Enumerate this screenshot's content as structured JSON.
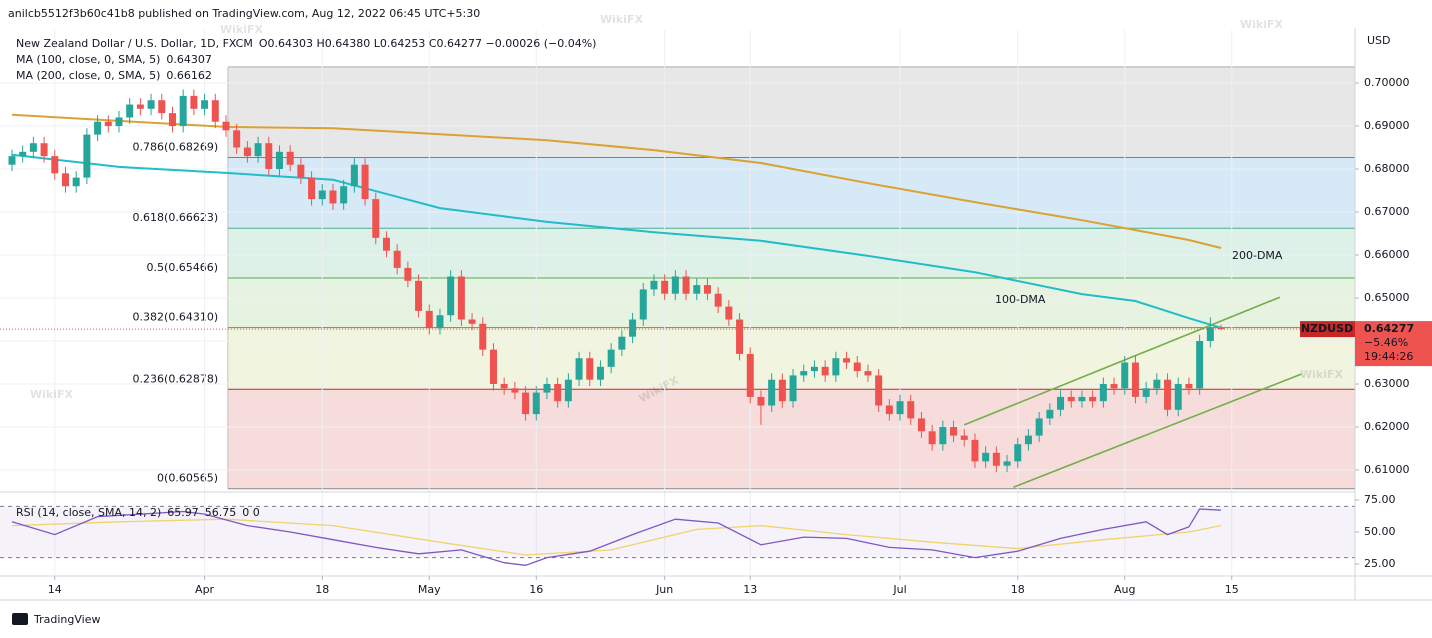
{
  "page": {
    "publisher_line": "anilcb5512f3b60c41b8 published on TradingView.com, Aug 12, 2022 06:45 UTC+5:30",
    "footer": "TradingView",
    "watermark": "WikiFX"
  },
  "chart_data": {
    "type": "candlestick",
    "title": "New Zealand Dollar / U.S. Dollar, 1D, FXCM",
    "ohlc_text": "O0.64303 H0.64380 L0.64253 C0.64277 −0.00026 (−0.04%)",
    "y_axis_label": "USD",
    "up_color": "#26a69a",
    "down_color": "#ef5350",
    "open": [
      0.681,
      0.683,
      0.684,
      0.686,
      0.683,
      0.679,
      0.676,
      0.678,
      0.688,
      0.691,
      0.69,
      0.692,
      0.695,
      0.694,
      0.696,
      0.693,
      0.69,
      0.697,
      0.694,
      0.696,
      0.691,
      0.689,
      0.685,
      0.683,
      0.686,
      0.68,
      0.684,
      0.681,
      0.678,
      0.673,
      0.675,
      0.672,
      0.676,
      0.681,
      0.673,
      0.664,
      0.661,
      0.657,
      0.654,
      0.647,
      0.643,
      0.646,
      0.655,
      0.645,
      0.644,
      0.638,
      0.63,
      0.629,
      0.628,
      0.623,
      0.628,
      0.63,
      0.626,
      0.631,
      0.636,
      0.631,
      0.634,
      0.638,
      0.641,
      0.645,
      0.652,
      0.654,
      0.651,
      0.655,
      0.651,
      0.653,
      0.651,
      0.648,
      0.645,
      0.637,
      0.627,
      0.625,
      0.631,
      0.626,
      0.632,
      0.633,
      0.634,
      0.632,
      0.636,
      0.635,
      0.633,
      0.632,
      0.625,
      0.623,
      0.626,
      0.622,
      0.619,
      0.616,
      0.62,
      0.618,
      0.617,
      0.612,
      0.614,
      0.611,
      0.612,
      0.616,
      0.618,
      0.622,
      0.624,
      0.627,
      0.626,
      0.627,
      0.626,
      0.63,
      0.629,
      0.635,
      0.627,
      0.629,
      0.631,
      0.624,
      0.63,
      0.629,
      0.64,
      0.64303
    ],
    "high": [
      0.6845,
      0.6855,
      0.6875,
      0.6875,
      0.6845,
      0.6805,
      0.6795,
      0.6895,
      0.6925,
      0.6925,
      0.6935,
      0.6965,
      0.6965,
      0.6975,
      0.6975,
      0.6945,
      0.6985,
      0.6985,
      0.6975,
      0.6975,
      0.6925,
      0.6905,
      0.6865,
      0.6875,
      0.6875,
      0.6855,
      0.6855,
      0.6825,
      0.6795,
      0.6765,
      0.6765,
      0.6775,
      0.6825,
      0.6825,
      0.6745,
      0.6655,
      0.6625,
      0.6585,
      0.6555,
      0.6485,
      0.6475,
      0.6565,
      0.6565,
      0.6465,
      0.6455,
      0.6395,
      0.6315,
      0.6305,
      0.6295,
      0.6295,
      0.6315,
      0.6315,
      0.6325,
      0.6375,
      0.6375,
      0.6355,
      0.6395,
      0.6425,
      0.6465,
      0.6535,
      0.6555,
      0.6555,
      0.6565,
      0.6565,
      0.6545,
      0.6545,
      0.6525,
      0.6495,
      0.6465,
      0.6385,
      0.6285,
      0.6325,
      0.6325,
      0.6335,
      0.6345,
      0.6355,
      0.6355,
      0.6375,
      0.6375,
      0.6365,
      0.6345,
      0.6335,
      0.6265,
      0.6275,
      0.6275,
      0.6235,
      0.6205,
      0.6215,
      0.6215,
      0.6195,
      0.6185,
      0.6155,
      0.6155,
      0.6135,
      0.6175,
      0.6195,
      0.6235,
      0.6255,
      0.6285,
      0.6285,
      0.6285,
      0.6285,
      0.6315,
      0.6315,
      0.6365,
      0.6365,
      0.6305,
      0.6325,
      0.6325,
      0.6315,
      0.6315,
      0.6415,
      0.6455,
      0.6438
    ],
    "low": [
      0.6795,
      0.6815,
      0.6825,
      0.6815,
      0.6775,
      0.6745,
      0.6745,
      0.6765,
      0.6865,
      0.6885,
      0.6885,
      0.6905,
      0.6925,
      0.6925,
      0.6915,
      0.6885,
      0.6885,
      0.6925,
      0.6925,
      0.6895,
      0.6875,
      0.6835,
      0.6815,
      0.6815,
      0.6785,
      0.6785,
      0.6795,
      0.6765,
      0.6715,
      0.6715,
      0.6705,
      0.6705,
      0.6745,
      0.6715,
      0.6625,
      0.6595,
      0.6555,
      0.6525,
      0.6455,
      0.6415,
      0.6415,
      0.6445,
      0.6435,
      0.6425,
      0.6365,
      0.6285,
      0.6275,
      0.6265,
      0.6215,
      0.6215,
      0.6265,
      0.6245,
      0.6245,
      0.6295,
      0.6295,
      0.6295,
      0.6325,
      0.6365,
      0.6395,
      0.6435,
      0.6505,
      0.6495,
      0.6495,
      0.6495,
      0.6495,
      0.6495,
      0.6465,
      0.6435,
      0.6355,
      0.6255,
      0.6205,
      0.6235,
      0.6245,
      0.6245,
      0.6305,
      0.6315,
      0.6305,
      0.6305,
      0.6335,
      0.6315,
      0.6305,
      0.6235,
      0.6215,
      0.6215,
      0.6205,
      0.6175,
      0.6145,
      0.6145,
      0.6165,
      0.6155,
      0.6105,
      0.6105,
      0.6095,
      0.6095,
      0.6105,
      0.6145,
      0.6165,
      0.6205,
      0.6225,
      0.6245,
      0.6245,
      0.6245,
      0.6245,
      0.6275,
      0.6275,
      0.6255,
      0.6255,
      0.6275,
      0.6225,
      0.6225,
      0.6275,
      0.6275,
      0.6385,
      0.64253
    ],
    "close": [
      0.683,
      0.684,
      0.686,
      0.683,
      0.679,
      0.676,
      0.678,
      0.688,
      0.691,
      0.69,
      0.692,
      0.695,
      0.694,
      0.696,
      0.693,
      0.69,
      0.697,
      0.694,
      0.696,
      0.691,
      0.689,
      0.685,
      0.683,
      0.686,
      0.68,
      0.684,
      0.681,
      0.678,
      0.673,
      0.675,
      0.672,
      0.676,
      0.681,
      0.673,
      0.664,
      0.661,
      0.657,
      0.654,
      0.647,
      0.643,
      0.646,
      0.655,
      0.645,
      0.644,
      0.638,
      0.63,
      0.629,
      0.628,
      0.623,
      0.628,
      0.63,
      0.626,
      0.631,
      0.636,
      0.631,
      0.634,
      0.638,
      0.641,
      0.645,
      0.652,
      0.654,
      0.651,
      0.655,
      0.651,
      0.653,
      0.651,
      0.648,
      0.645,
      0.637,
      0.627,
      0.625,
      0.631,
      0.626,
      0.632,
      0.633,
      0.634,
      0.632,
      0.636,
      0.635,
      0.633,
      0.632,
      0.625,
      0.623,
      0.626,
      0.622,
      0.619,
      0.616,
      0.62,
      0.618,
      0.617,
      0.612,
      0.614,
      0.611,
      0.612,
      0.616,
      0.618,
      0.622,
      0.624,
      0.627,
      0.626,
      0.627,
      0.626,
      0.63,
      0.629,
      0.635,
      0.627,
      0.629,
      0.631,
      0.624,
      0.63,
      0.629,
      0.64,
      0.64303,
      0.64277
    ],
    "xlim": [
      -1.12,
      125.52
    ],
    "xticks": [
      {
        "value": 4,
        "label": "14"
      },
      {
        "value": 18,
        "label": "Apr"
      },
      {
        "value": 29,
        "label": "18"
      },
      {
        "value": 39,
        "label": "May"
      },
      {
        "value": 49,
        "label": "16"
      },
      {
        "value": 61,
        "label": "Jun"
      },
      {
        "value": 69,
        "label": "13"
      },
      {
        "value": 83,
        "label": "Jul"
      },
      {
        "value": 94,
        "label": "18"
      },
      {
        "value": 104,
        "label": "Aug"
      },
      {
        "value": 114,
        "label": "15"
      }
    ],
    "ylim": [
      0.60535,
      0.71233
    ],
    "yticks": [
      {
        "value": 0.61,
        "label": "0.61000"
      },
      {
        "value": 0.62,
        "label": "0.62000"
      },
      {
        "value": 0.63,
        "label": "0.63000"
      },
      {
        "value": 0.64,
        "label": "0.64000"
      },
      {
        "value": 0.65,
        "label": "0.65000"
      },
      {
        "value": 0.66,
        "label": "0.66000"
      },
      {
        "value": 0.67,
        "label": "0.67000"
      },
      {
        "value": 0.68,
        "label": "0.68000"
      },
      {
        "value": 0.69,
        "label": "0.69000"
      },
      {
        "value": 0.7,
        "label": "0.70000"
      }
    ],
    "grid": true,
    "moving_averages": [
      {
        "name": "MA (100, close, 0, SMA, 5)",
        "legend_value": 0.64307,
        "annotation": "100-DMA",
        "color": "#22bcc9",
        "x": [
          0,
          10,
          20,
          30,
          40,
          50,
          60,
          70,
          80,
          90,
          100,
          105,
          110,
          113
        ],
        "values": [
          0.6833,
          0.6805,
          0.6791,
          0.6775,
          0.6709,
          0.6677,
          0.6653,
          0.6633,
          0.6598,
          0.656,
          0.6509,
          0.6493,
          0.6453,
          0.64307
        ]
      },
      {
        "name": "MA (200, close, 0, SMA, 5)",
        "legend_value": 0.66162,
        "annotation": "200-DMA",
        "color": "#d9a233",
        "x": [
          0,
          10,
          20,
          30,
          40,
          50,
          60,
          70,
          80,
          90,
          100,
          110,
          113
        ],
        "values": [
          0.6926,
          0.6912,
          0.6898,
          0.6895,
          0.6881,
          0.6867,
          0.6844,
          0.6814,
          0.6767,
          0.6723,
          0.6681,
          0.6635,
          0.66162
        ]
      }
    ],
    "fib": {
      "x_start": 20.2,
      "top": 0.7037,
      "top_fill": "#e3e3e3",
      "levels": [
        {
          "label": "0.786(0.68269)",
          "value": 0.68269,
          "color": "#64859f",
          "fill": "#cfe5f5"
        },
        {
          "label": "0.618(0.66623)",
          "value": 0.66623,
          "color": "#4fae8e",
          "fill": "#d7efe5"
        },
        {
          "label": "0.5(0.65466)",
          "value": 0.65466,
          "color": "#4caf50",
          "fill": "#e2f1dc"
        },
        {
          "label": "0.382(0.64310)",
          "value": 0.6431,
          "color": "#7a8c3b",
          "fill": "#eef3d9"
        },
        {
          "label": "0.236(0.62878)",
          "value": 0.62878,
          "color": "#c62828",
          "fill": "#f6d6d6"
        },
        {
          "label": "0(0.60565)",
          "value": 0.60565,
          "color": "#888888",
          "fill": null
        }
      ]
    },
    "channel": {
      "color": "#74ad4a",
      "lines": [
        {
          "x": [
            89,
            118.5
          ],
          "values": [
            0.6205,
            0.6502
          ]
        },
        {
          "x": [
            93.6,
            120.5
          ],
          "values": [
            0.606,
            0.6323
          ]
        }
      ]
    },
    "last_price": {
      "symbol": "NZDUSD",
      "value": 0.64277,
      "change": "−5.46%",
      "countdown": "19:44:26",
      "color": "#ef5350"
    },
    "rsi": {
      "title": "RSI (14, close, SMA, 14, 2)",
      "value": 65.97,
      "ma_value": 56.75,
      "extra": "0 0",
      "color": "#7e57c2",
      "ma_color": "#f0d36a",
      "ylim": [
        16.4,
        78.9
      ],
      "yticks": [
        {
          "value": 25,
          "label": "25.00"
        },
        {
          "value": 50,
          "label": "50.00"
        },
        {
          "value": 75,
          "label": "75.00"
        }
      ],
      "bands": [
        30,
        70
      ],
      "x": [
        0,
        4,
        8,
        12,
        16,
        18,
        22,
        26,
        30,
        34,
        38,
        42,
        46,
        48,
        50,
        54,
        58,
        62,
        66,
        70,
        74,
        78,
        82,
        86,
        90,
        94,
        98,
        102,
        106,
        108,
        110,
        111,
        113
      ],
      "values": [
        58,
        48,
        62,
        64,
        66,
        64,
        55,
        50,
        44,
        38,
        33,
        36,
        26,
        24,
        30,
        35,
        48,
        60,
        57,
        40,
        46,
        45,
        38,
        36,
        30,
        35,
        45,
        52,
        58,
        48,
        54,
        68,
        67
      ],
      "ma_x": [
        0,
        10,
        20,
        30,
        40,
        48,
        56,
        64,
        70,
        78,
        86,
        94,
        102,
        110,
        113
      ],
      "ma_values": [
        55,
        58,
        60,
        55,
        42,
        32,
        36,
        52,
        55,
        48,
        42,
        37,
        44,
        50,
        55
      ]
    }
  }
}
